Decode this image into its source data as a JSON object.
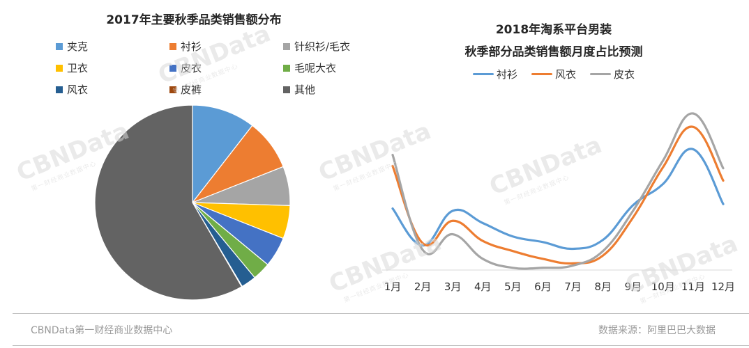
{
  "chart_data": [
    {
      "type": "pie",
      "title": "2017年主要秋季品类销售额分布",
      "legend_placement": "top",
      "categories": [
        "夹克",
        "衬衫",
        "针织衫/毛衣",
        "卫衣",
        "皮衣",
        "毛呢大衣",
        "风衣",
        "皮裤",
        "其他"
      ],
      "values": [
        10.5,
        8.5,
        6.5,
        5.5,
        5.0,
        3.0,
        2.5,
        0.1,
        58.4
      ],
      "colors": [
        "#5b9bd5",
        "#ed7d31",
        "#a5a5a5",
        "#ffc000",
        "#4472c4",
        "#70ad47",
        "#255e91",
        "#9e480e",
        "#636363"
      ]
    },
    {
      "type": "line",
      "title": "2018年淘系平台男装\n秋季部分品类销售额月度占比预测",
      "title_lines": [
        "2018年淘系平台男装",
        "秋季部分品类销售额月度占比预测"
      ],
      "legend_placement": "top",
      "categories": [
        "1月",
        "2月",
        "3月",
        "4月",
        "5月",
        "6月",
        "7月",
        "8月",
        "9月",
        "10月",
        "11月",
        "12月"
      ],
      "ylim": [
        0,
        14
      ],
      "grid": false,
      "series": [
        {
          "name": "衬衫",
          "color": "#5b9bd5",
          "values": [
            5.5,
            2.2,
            5.3,
            4.2,
            3.0,
            2.5,
            1.9,
            2.7,
            5.8,
            7.7,
            10.8,
            5.9
          ]
        },
        {
          "name": "风衣",
          "color": "#ed7d31",
          "values": [
            9.3,
            2.4,
            4.4,
            2.6,
            1.7,
            1.0,
            0.6,
            1.3,
            4.7,
            9.2,
            12.8,
            8.0
          ]
        },
        {
          "name": "皮衣",
          "color": "#a5a5a5",
          "values": [
            10.3,
            1.8,
            3.2,
            1.0,
            0.2,
            0.2,
            0.4,
            1.7,
            5.3,
            9.8,
            14.0,
            9.1
          ]
        }
      ]
    }
  ],
  "watermark": {
    "brand": "CBNData",
    "sub": "第一财经商业数据中心"
  },
  "footer": {
    "left": "CBNData第一财经商业数据中心",
    "right": "数据来源：阿里巴巴大数据"
  }
}
